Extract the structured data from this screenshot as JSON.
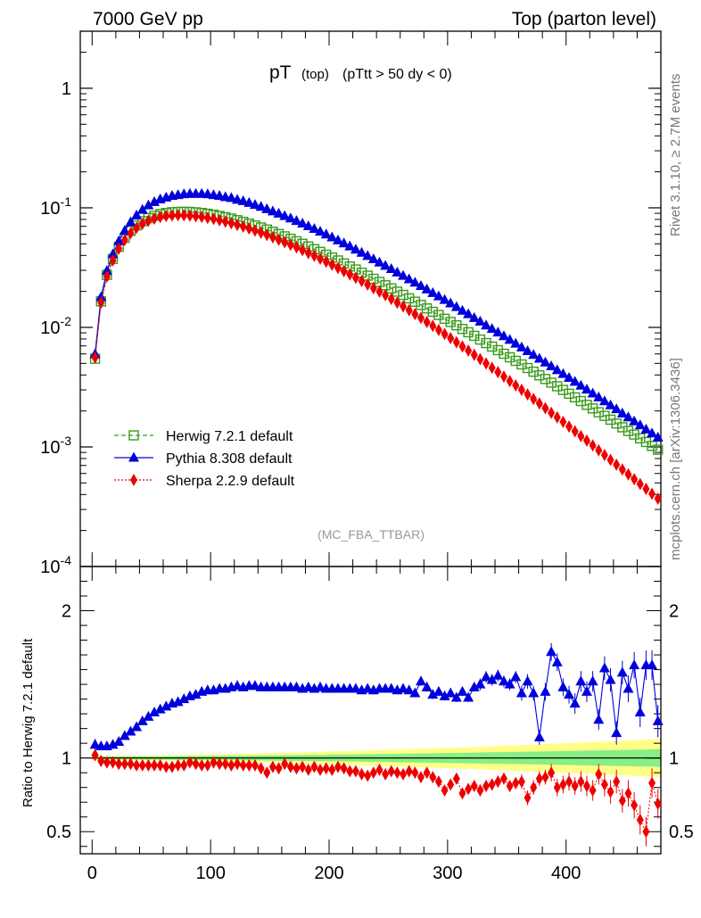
{
  "header": {
    "left": "7000 GeV pp",
    "right": "Top (parton level)"
  },
  "side": {
    "rivet": "Rivet 3.1.10, ≥ 2.7M events",
    "mcplots": "mcplots.cern.ch [arXiv:1306.3436]"
  },
  "colors": {
    "herwig": "#3a9a1a",
    "pythia": "#0000dd",
    "sherpa": "#ee0000",
    "band_inner": "#88ee88",
    "band_outer": "#ffff88"
  },
  "chart_data": [
    {
      "type": "line",
      "title": "pT (top) (pTtt > 50 dy < 0)",
      "title_main": "pT",
      "title_sub": "(top)",
      "title_cut": "(pTtt > 50 dy < 0)",
      "watermark": "(MC_FBA_TTBAR)",
      "yscale": "log",
      "ylim": [
        0.0001,
        3
      ],
      "xlim": [
        -10,
        480
      ],
      "ytick_labels": [
        "10^-4",
        "10^-3",
        "10^-2",
        "10^-1",
        "1"
      ],
      "legend_position": "lower-left",
      "x": [
        2.5,
        7.5,
        12.5,
        17.5,
        22.5,
        27.5,
        32.5,
        37.5,
        42.5,
        47.5,
        52.5,
        57.5,
        62.5,
        67.5,
        72.5,
        77.5,
        82.5,
        87.5,
        92.5,
        97.5,
        102.5,
        107.5,
        112.5,
        117.5,
        122.5,
        127.5,
        132.5,
        137.5,
        142.5,
        147.5,
        152.5,
        157.5,
        162.5,
        167.5,
        172.5,
        177.5,
        182.5,
        187.5,
        192.5,
        197.5,
        202.5,
        207.5,
        212.5,
        217.5,
        222.5,
        227.5,
        232.5,
        237.5,
        242.5,
        247.5,
        252.5,
        257.5,
        262.5,
        267.5,
        272.5,
        277.5,
        282.5,
        287.5,
        292.5,
        297.5,
        302.5,
        307.5,
        312.5,
        317.5,
        322.5,
        327.5,
        332.5,
        337.5,
        342.5,
        347.5,
        352.5,
        357.5,
        362.5,
        367.5,
        372.5,
        377.5,
        382.5,
        387.5,
        392.5,
        397.5,
        402.5,
        407.5,
        412.5,
        417.5,
        422.5,
        427.5,
        432.5,
        437.5,
        442.5,
        447.5,
        452.5,
        457.5,
        462.5,
        467.5,
        472.5,
        477.5
      ],
      "series": [
        {
          "name": "Herwig 7.2.1 default",
          "marker": "open-square",
          "linestyle": "dashed",
          "values": [
            0.00547,
            0.0165,
            0.0275,
            0.0374,
            0.0472,
            0.0561,
            0.0642,
            0.0713,
            0.0773,
            0.0821,
            0.0858,
            0.0886,
            0.0906,
            0.0919,
            0.0925,
            0.0927,
            0.0924,
            0.0917,
            0.0906,
            0.0892,
            0.0875,
            0.0856,
            0.0835,
            0.0813,
            0.0789,
            0.0764,
            0.0738,
            0.0712,
            0.0685,
            0.0658,
            0.0631,
            0.0604,
            0.0577,
            0.0551,
            0.0525,
            0.05,
            0.0475,
            0.0451,
            0.0428,
            0.0405,
            0.0384,
            0.0363,
            0.0343,
            0.0323,
            0.0305,
            0.0287,
            0.0271,
            0.0255,
            0.024,
            0.0225,
            0.0212,
            0.0199,
            0.0187,
            0.0175,
            0.0164,
            0.0154,
            0.0144,
            0.0135,
            0.0127,
            0.0118,
            0.0111,
            0.0104,
            0.0097,
            0.0091,
            0.0085,
            0.00791,
            0.00739,
            0.00691,
            0.00645,
            0.00602,
            0.00562,
            0.00525,
            0.0049,
            0.00457,
            0.00426,
            0.00397,
            0.0037,
            0.00345,
            0.00322,
            0.003,
            0.00279,
            0.0026,
            0.00242,
            0.00225,
            0.0021,
            0.00195,
            0.00182,
            0.00169,
            0.00157,
            0.00146,
            0.00136,
            0.00127,
            0.00118,
            0.0011,
            0.00102,
            0.000948
          ]
        },
        {
          "name": "Pythia 8.308 default",
          "marker": "filled-triangle",
          "linestyle": "solid",
          "values": [
            0.00597,
            0.0179,
            0.0297,
            0.0409,
            0.0526,
            0.0644,
            0.0758,
            0.0866,
            0.0963,
            0.105,
            0.112,
            0.118,
            0.122,
            0.126,
            0.128,
            0.13,
            0.131,
            0.131,
            0.131,
            0.13,
            0.128,
            0.126,
            0.123,
            0.121,
            0.117,
            0.114,
            0.11,
            0.106,
            0.102,
            0.0976,
            0.0935,
            0.0895,
            0.0855,
            0.0816,
            0.0778,
            0.074,
            0.0703,
            0.0667,
            0.0633,
            0.0599,
            0.0567,
            0.0535,
            0.0505,
            0.0476,
            0.0448,
            0.0421,
            0.0396,
            0.0372,
            0.0349,
            0.0328,
            0.0308,
            0.0288,
            0.027,
            0.0253,
            0.0237,
            0.0222,
            0.0208,
            0.0194,
            0.0182,
            0.017,
            0.0159,
            0.0148,
            0.0138,
            0.0129,
            0.012,
            0.0112,
            0.0104,
            0.00973,
            0.00908,
            0.00845,
            0.00787,
            0.00732,
            0.00681,
            0.00634,
            0.00589,
            0.00548,
            0.00509,
            0.00473,
            0.00439,
            0.00408,
            0.00379,
            0.00351,
            0.00326,
            0.00302,
            0.0028,
            0.0026,
            0.00241,
            0.00223,
            0.00207,
            0.00191,
            0.00177,
            0.00164,
            0.00152,
            0.0014,
            0.0013,
            0.0012
          ]
        },
        {
          "name": "Sherpa 2.2.9 default",
          "marker": "filled-diamond",
          "linestyle": "dotted",
          "values": [
            0.00558,
            0.0161,
            0.0266,
            0.0363,
            0.0455,
            0.0538,
            0.0614,
            0.068,
            0.0735,
            0.0779,
            0.0813,
            0.0838,
            0.0854,
            0.0863,
            0.0867,
            0.0866,
            0.086,
            0.0851,
            0.0839,
            0.0824,
            0.0807,
            0.0787,
            0.0766,
            0.0744,
            0.072,
            0.0696,
            0.0671,
            0.0645,
            0.0619,
            0.0593,
            0.0567,
            0.0541,
            0.0516,
            0.0491,
            0.0467,
            0.0443,
            0.0419,
            0.0397,
            0.0375,
            0.0354,
            0.0334,
            0.0314,
            0.0295,
            0.0277,
            0.026,
            0.0244,
            0.0228,
            0.0213,
            0.0199,
            0.0186,
            0.0173,
            0.0161,
            0.015,
            0.0139,
            0.0129,
            0.012,
            0.0111,
            0.0103,
            0.00952,
            0.0088,
            0.00813,
            0.00751,
            0.00693,
            0.00639,
            0.00589,
            0.00542,
            0.00499,
            0.00459,
            0.00422,
            0.00388,
            0.00356,
            0.00327,
            0.003,
            0.00275,
            0.00252,
            0.00231,
            0.00211,
            0.00193,
            0.00177,
            0.00162,
            0.00148,
            0.00135,
            0.00123,
            0.00113,
            0.00103,
            0.000938,
            0.000856,
            0.00078,
            0.000711,
            0.000648,
            0.00059,
            0.000538,
            0.00049,
            0.000446,
            0.000406,
            0.000369
          ]
        }
      ]
    },
    {
      "type": "line",
      "ylabel": "Ratio to Herwig 7.2.1 default",
      "ylim": [
        0.35,
        2.3
      ],
      "xlim": [
        -10,
        480
      ],
      "ytick_labels": [
        "0.5",
        "1",
        "2"
      ],
      "xtick_labels": [
        "0",
        "100",
        "200",
        "300",
        "400"
      ],
      "reference": 1,
      "band_inner_halfwidth": [
        0.01,
        0.06
      ],
      "band_outer_halfwidth": [
        0.015,
        0.13
      ],
      "x": [
        2.5,
        7.5,
        12.5,
        17.5,
        22.5,
        27.5,
        32.5,
        37.5,
        42.5,
        47.5,
        52.5,
        57.5,
        62.5,
        67.5,
        72.5,
        77.5,
        82.5,
        87.5,
        92.5,
        97.5,
        102.5,
        107.5,
        112.5,
        117.5,
        122.5,
        127.5,
        132.5,
        137.5,
        142.5,
        147.5,
        152.5,
        157.5,
        162.5,
        167.5,
        172.5,
        177.5,
        182.5,
        187.5,
        192.5,
        197.5,
        202.5,
        207.5,
        212.5,
        217.5,
        222.5,
        227.5,
        232.5,
        237.5,
        242.5,
        247.5,
        252.5,
        257.5,
        262.5,
        267.5,
        272.5,
        277.5,
        282.5,
        287.5,
        292.5,
        297.5,
        302.5,
        307.5,
        312.5,
        317.5,
        322.5,
        327.5,
        332.5,
        337.5,
        342.5,
        347.5,
        352.5,
        357.5,
        362.5,
        367.5,
        372.5,
        377.5,
        382.5,
        387.5,
        392.5,
        397.5,
        402.5,
        407.5,
        412.5,
        417.5,
        422.5,
        427.5,
        432.5,
        437.5,
        442.5,
        447.5,
        452.5,
        457.5,
        462.5,
        467.5,
        472.5,
        477.5
      ],
      "series": [
        {
          "name": "Pythia 8.308 default",
          "values": [
            1.09,
            1.08,
            1.08,
            1.09,
            1.11,
            1.15,
            1.18,
            1.21,
            1.25,
            1.28,
            1.31,
            1.33,
            1.35,
            1.37,
            1.38,
            1.4,
            1.42,
            1.43,
            1.45,
            1.46,
            1.46,
            1.47,
            1.47,
            1.48,
            1.49,
            1.48,
            1.49,
            1.49,
            1.48,
            1.48,
            1.48,
            1.48,
            1.48,
            1.48,
            1.48,
            1.47,
            1.48,
            1.47,
            1.48,
            1.47,
            1.47,
            1.47,
            1.47,
            1.47,
            1.47,
            1.46,
            1.47,
            1.46,
            1.47,
            1.47,
            1.47,
            1.46,
            1.47,
            1.46,
            1.44,
            1.52,
            1.48,
            1.43,
            1.45,
            1.42,
            1.44,
            1.41,
            1.45,
            1.41,
            1.48,
            1.5,
            1.55,
            1.53,
            1.56,
            1.52,
            1.5,
            1.55,
            1.44,
            1.52,
            1.44,
            1.14,
            1.45,
            1.72,
            1.65,
            1.48,
            1.43,
            1.37,
            1.52,
            1.45,
            1.52,
            1.26,
            1.61,
            1.53,
            1.17,
            1.58,
            1.47,
            1.63,
            1.31,
            1.63,
            1.63,
            1.25
          ],
          "err": [
            0.04,
            0.02,
            0.02,
            0.02,
            0.02,
            0.02,
            0.02,
            0.02,
            0.02,
            0.02,
            0.02,
            0.02,
            0.02,
            0.02,
            0.02,
            0.02,
            0.02,
            0.02,
            0.02,
            0.02,
            0.02,
            0.02,
            0.02,
            0.02,
            0.02,
            0.02,
            0.02,
            0.02,
            0.02,
            0.02,
            0.02,
            0.02,
            0.02,
            0.02,
            0.02,
            0.02,
            0.02,
            0.02,
            0.02,
            0.02,
            0.02,
            0.02,
            0.02,
            0.02,
            0.02,
            0.02,
            0.02,
            0.02,
            0.02,
            0.02,
            0.02,
            0.02,
            0.02,
            0.02,
            0.02,
            0.03,
            0.03,
            0.03,
            0.03,
            0.03,
            0.03,
            0.03,
            0.03,
            0.03,
            0.03,
            0.04,
            0.04,
            0.04,
            0.04,
            0.04,
            0.04,
            0.04,
            0.05,
            0.05,
            0.05,
            0.05,
            0.06,
            0.06,
            0.06,
            0.06,
            0.06,
            0.07,
            0.07,
            0.07,
            0.07,
            0.07,
            0.08,
            0.08,
            0.08,
            0.08,
            0.09,
            0.09,
            0.1,
            0.1,
            0.1,
            0.11
          ]
        },
        {
          "name": "Sherpa 2.2.9 default",
          "values": [
            1.02,
            0.98,
            0.97,
            0.97,
            0.96,
            0.96,
            0.96,
            0.95,
            0.95,
            0.95,
            0.95,
            0.95,
            0.94,
            0.94,
            0.95,
            0.95,
            0.97,
            0.96,
            0.95,
            0.95,
            0.97,
            0.96,
            0.96,
            0.95,
            0.96,
            0.95,
            0.95,
            0.95,
            0.93,
            0.9,
            0.94,
            0.93,
            0.96,
            0.94,
            0.93,
            0.94,
            0.92,
            0.94,
            0.92,
            0.93,
            0.92,
            0.94,
            0.93,
            0.91,
            0.91,
            0.89,
            0.88,
            0.9,
            0.92,
            0.89,
            0.91,
            0.9,
            0.89,
            0.91,
            0.9,
            0.87,
            0.9,
            0.87,
            0.84,
            0.78,
            0.82,
            0.86,
            0.76,
            0.79,
            0.81,
            0.78,
            0.81,
            0.82,
            0.84,
            0.86,
            0.81,
            0.83,
            0.84,
            0.73,
            0.8,
            0.86,
            0.87,
            0.9,
            0.8,
            0.82,
            0.84,
            0.81,
            0.84,
            0.81,
            0.78,
            0.89,
            0.82,
            0.77,
            0.84,
            0.71,
            0.76,
            0.68,
            0.58,
            0.5,
            0.83,
            0.69
          ],
          "err": [
            0.04,
            0.02,
            0.02,
            0.02,
            0.02,
            0.02,
            0.02,
            0.02,
            0.02,
            0.02,
            0.02,
            0.02,
            0.02,
            0.02,
            0.02,
            0.02,
            0.02,
            0.02,
            0.02,
            0.02,
            0.02,
            0.02,
            0.02,
            0.02,
            0.02,
            0.02,
            0.02,
            0.02,
            0.02,
            0.02,
            0.02,
            0.02,
            0.02,
            0.02,
            0.02,
            0.02,
            0.02,
            0.02,
            0.02,
            0.02,
            0.02,
            0.02,
            0.02,
            0.02,
            0.02,
            0.02,
            0.02,
            0.02,
            0.02,
            0.02,
            0.02,
            0.02,
            0.02,
            0.02,
            0.02,
            0.03,
            0.03,
            0.03,
            0.03,
            0.03,
            0.03,
            0.03,
            0.03,
            0.03,
            0.03,
            0.04,
            0.04,
            0.04,
            0.04,
            0.04,
            0.04,
            0.04,
            0.05,
            0.05,
            0.05,
            0.05,
            0.05,
            0.06,
            0.06,
            0.06,
            0.06,
            0.06,
            0.07,
            0.07,
            0.07,
            0.07,
            0.08,
            0.08,
            0.08,
            0.08,
            0.09,
            0.09,
            0.1,
            0.1,
            0.1,
            0.1
          ]
        }
      ]
    }
  ]
}
